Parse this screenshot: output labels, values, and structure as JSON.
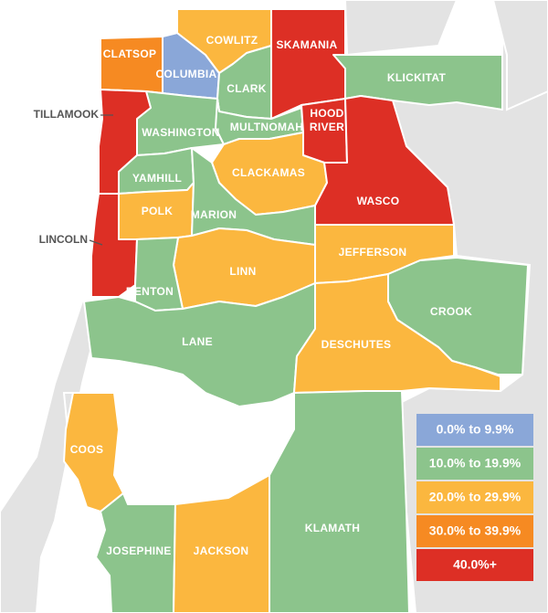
{
  "colors": {
    "blue": "#8aa7d8",
    "green": "#8cc48c",
    "yellow": "#fbb73f",
    "orange": "#f68a22",
    "red": "#dd2f25",
    "background_land": "#e3e3e3"
  },
  "counties": [
    {
      "name": "CLATSOP",
      "category": "orange"
    },
    {
      "name": "COLUMBIA",
      "category": "blue"
    },
    {
      "name": "COWLITZ",
      "category": "yellow"
    },
    {
      "name": "SKAMANIA",
      "category": "red"
    },
    {
      "name": "CLARK",
      "category": "green"
    },
    {
      "name": "KLICKITAT",
      "category": "green"
    },
    {
      "name": "WASHINGTON",
      "category": "green"
    },
    {
      "name": "MULTNOMAH",
      "category": "green"
    },
    {
      "name": "HOOD RIVER",
      "category": "red"
    },
    {
      "name": "TILLAMOOK",
      "category": "red"
    },
    {
      "name": "YAMHILL",
      "category": "green"
    },
    {
      "name": "CLACKAMAS",
      "category": "yellow"
    },
    {
      "name": "WASCO",
      "category": "red"
    },
    {
      "name": "POLK",
      "category": "yellow"
    },
    {
      "name": "MARION",
      "category": "green"
    },
    {
      "name": "LINCOLN",
      "category": "red"
    },
    {
      "name": "JEFFERSON",
      "category": "yellow"
    },
    {
      "name": "LINN",
      "category": "yellow"
    },
    {
      "name": "BENTON",
      "category": "green"
    },
    {
      "name": "CROOK",
      "category": "green"
    },
    {
      "name": "LANE",
      "category": "green"
    },
    {
      "name": "DESCHUTES",
      "category": "yellow"
    },
    {
      "name": "COOS",
      "category": "yellow"
    },
    {
      "name": "KLAMATH",
      "category": "green"
    },
    {
      "name": "JOSEPHINE",
      "category": "green"
    },
    {
      "name": "JACKSON",
      "category": "yellow"
    }
  ],
  "legend": [
    {
      "label": "0.0% to 9.9%",
      "category": "blue"
    },
    {
      "label": "10.0% to 19.9%",
      "category": "green"
    },
    {
      "label": "20.0% to 29.9%",
      "category": "yellow"
    },
    {
      "label": "30.0% to 39.9%",
      "category": "orange"
    },
    {
      "label": "40.0%+",
      "category": "red"
    }
  ]
}
